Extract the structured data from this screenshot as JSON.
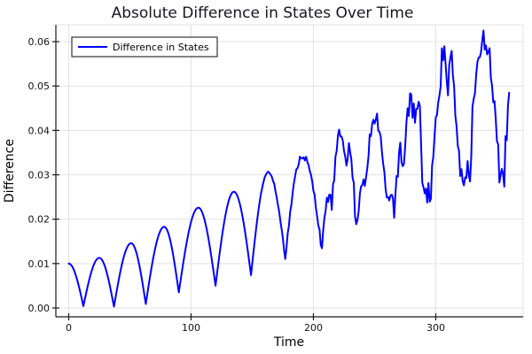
{
  "page": {
    "title": "Absolute Difference in States Over Time"
  },
  "chart_data": {
    "type": "line",
    "title": "Absolute Difference in States Over Time",
    "xlabel": "Time",
    "ylabel": "Difference",
    "xlim": [
      -10.5,
      371.4
    ],
    "ylim": [
      -0.002,
      0.0638
    ],
    "xticks": [
      0,
      100,
      200,
      300
    ],
    "xtick_labels": [
      "0",
      "100",
      "200",
      "300"
    ],
    "yticks": [
      0,
      0.01,
      0.02,
      0.03,
      0.04,
      0.05,
      0.06
    ],
    "ytick_labels": [
      "0.00",
      "0.01",
      "0.02",
      "0.03",
      "0.04",
      "0.05",
      "0.06"
    ],
    "grid": true,
    "legend": {
      "label": "Difference in States",
      "position": "top-left"
    },
    "series": [
      {
        "name": "Difference in States",
        "color": "#0000ff",
        "line_width": 2,
        "keypoints": [
          [
            0,
            0.01
          ],
          [
            12,
            0.0004
          ],
          [
            25,
            0.0113
          ],
          [
            37,
            0.0003
          ],
          [
            51,
            0.0146
          ],
          [
            63,
            0.0009
          ],
          [
            78,
            0.0183
          ],
          [
            90,
            0.0035
          ],
          [
            106,
            0.0226
          ],
          [
            120,
            0.005
          ],
          [
            135,
            0.0262
          ],
          [
            149,
            0.0074
          ],
          [
            163,
            0.0306
          ],
          [
            177,
            0.0114
          ],
          [
            191,
            0.0343
          ],
          [
            207,
            0.0133
          ],
          [
            213,
            0.0255
          ],
          [
            215,
            0.0228
          ],
          [
            222,
            0.039
          ],
          [
            227,
            0.0335
          ],
          [
            229,
            0.0356
          ],
          [
            235,
            0.0176
          ],
          [
            241,
            0.0295
          ],
          [
            243,
            0.0278
          ],
          [
            250,
            0.0426
          ],
          [
            254,
            0.0398
          ],
          [
            258,
            0.03
          ],
          [
            261,
            0.0238
          ],
          [
            263,
            0.0268
          ],
          [
            266,
            0.0198
          ],
          [
            269,
            0.0302
          ],
          [
            271,
            0.035
          ],
          [
            273,
            0.0308
          ],
          [
            279,
            0.046
          ],
          [
            283,
            0.0424
          ],
          [
            286,
            0.0448
          ],
          [
            289,
            0.0298
          ],
          [
            291,
            0.0245
          ],
          [
            294,
            0.0268
          ],
          [
            296,
            0.025
          ],
          [
            299,
            0.036
          ],
          [
            303,
            0.05
          ],
          [
            307,
            0.058
          ],
          [
            310,
            0.0465
          ],
          [
            312,
            0.0558
          ],
          [
            316,
            0.043
          ],
          [
            319,
            0.0328
          ],
          [
            323,
            0.0265
          ],
          [
            326,
            0.032
          ],
          [
            328,
            0.0298
          ],
          [
            333,
            0.052
          ],
          [
            336,
            0.0593
          ],
          [
            338,
            0.061
          ],
          [
            341,
            0.0565
          ],
          [
            343,
            0.0588
          ],
          [
            347,
            0.046
          ],
          [
            350,
            0.0368
          ],
          [
            352,
            0.0275
          ],
          [
            354,
            0.0338
          ],
          [
            356,
            0.029
          ],
          [
            358,
            0.0398
          ],
          [
            360,
            0.051
          ]
        ],
        "noise_envelope": [
          [
            0,
            0
          ],
          [
            150,
            0
          ],
          [
            163,
            0.0002
          ],
          [
            183,
            0.0005
          ],
          [
            203,
            0.0009
          ],
          [
            223,
            0.0014
          ],
          [
            243,
            0.0017
          ],
          [
            263,
            0.0021
          ],
          [
            283,
            0.0024
          ],
          [
            303,
            0.0027
          ],
          [
            323,
            0.0027
          ],
          [
            343,
            0.0027
          ],
          [
            360,
            0.0024
          ]
        ],
        "noise_seed": 11,
        "sample_step": 1
      }
    ],
    "colors": {
      "background": "#ffffff",
      "grid": "#e3e3e3",
      "frame_light": "#e3e3e3",
      "axis": "#1a1a1a",
      "text": "#000000",
      "legend_border": "#333333",
      "legend_background": "#ffffff"
    }
  }
}
